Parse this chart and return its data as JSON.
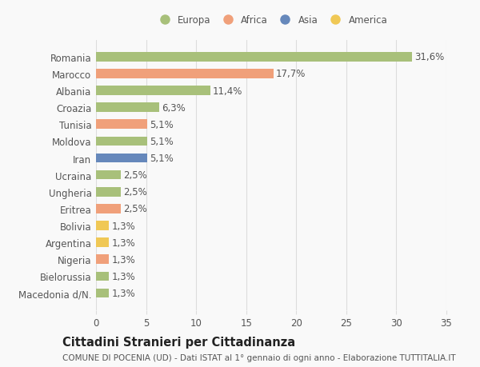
{
  "categories": [
    "Macedonia d/N.",
    "Bielorussia",
    "Nigeria",
    "Argentina",
    "Bolivia",
    "Eritrea",
    "Ungheria",
    "Ucraina",
    "Iran",
    "Moldova",
    "Tunisia",
    "Croazia",
    "Albania",
    "Marocco",
    "Romania"
  ],
  "values": [
    1.3,
    1.3,
    1.3,
    1.3,
    1.3,
    2.5,
    2.5,
    2.5,
    5.1,
    5.1,
    5.1,
    6.3,
    11.4,
    17.7,
    31.6
  ],
  "labels": [
    "1,3%",
    "1,3%",
    "1,3%",
    "1,3%",
    "1,3%",
    "2,5%",
    "2,5%",
    "2,5%",
    "5,1%",
    "5,1%",
    "5,1%",
    "6,3%",
    "11,4%",
    "17,7%",
    "31,6%"
  ],
  "colors": [
    "#a8c07a",
    "#a8c07a",
    "#f0a07a",
    "#f0c855",
    "#f0c855",
    "#f0a07a",
    "#a8c07a",
    "#a8c07a",
    "#6688bb",
    "#a8c07a",
    "#f0a07a",
    "#a8c07a",
    "#a8c07a",
    "#f0a07a",
    "#a8c07a"
  ],
  "legend_labels": [
    "Europa",
    "Africa",
    "Asia",
    "America"
  ],
  "legend_colors": [
    "#a8c07a",
    "#f0a07a",
    "#6688bb",
    "#f0c855"
  ],
  "title": "Cittadini Stranieri per Cittadinanza",
  "subtitle": "COMUNE DI POCENIA (UD) - Dati ISTAT al 1° gennaio di ogni anno - Elaborazione TUTTITALIA.IT",
  "xlim": [
    0,
    35
  ],
  "xticks": [
    0,
    5,
    10,
    15,
    20,
    25,
    30,
    35
  ],
  "background_color": "#f9f9f9",
  "bar_height": 0.55,
  "grid_color": "#dddddd",
  "text_color": "#555555",
  "label_fontsize": 8.5,
  "tick_fontsize": 8.5,
  "title_fontsize": 10.5,
  "subtitle_fontsize": 7.5
}
